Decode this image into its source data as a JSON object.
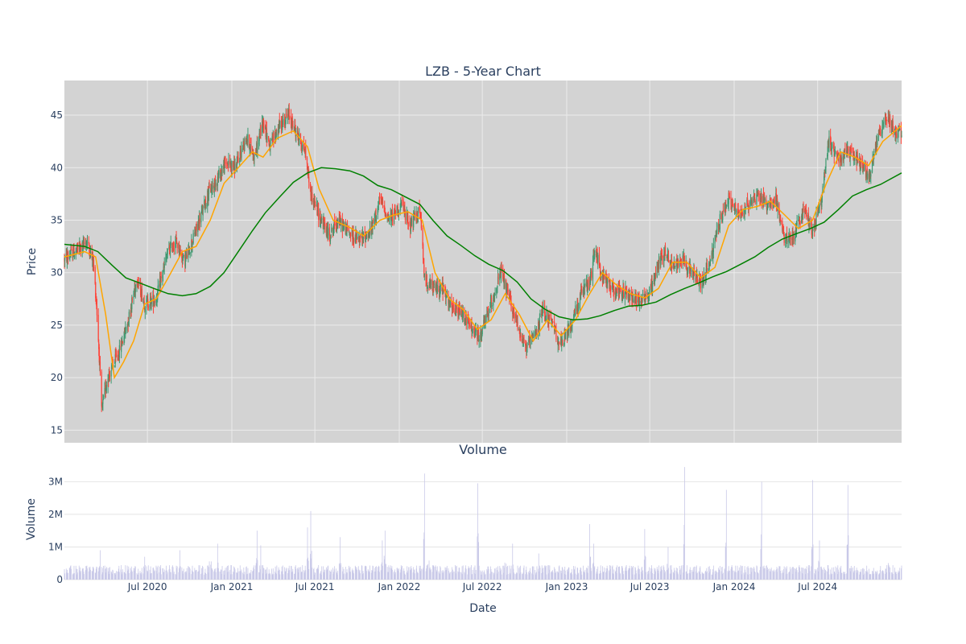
{
  "chart_data": [
    {
      "type": "candlestick",
      "title": "LZB - 5-Year Chart",
      "ylabel": "Price",
      "ylim": [
        13.8,
        48.3
      ],
      "y_ticks": [
        15,
        20,
        25,
        30,
        35,
        40,
        45
      ],
      "x_range": [
        "2020-01-02",
        "2024-12-31"
      ],
      "up_color": "#3d9970",
      "down_color": "#ff4136",
      "grid": true,
      "price_anchors": [
        [
          "2020-01-02",
          31.3
        ],
        [
          "2020-02-10",
          32.5
        ],
        [
          "2020-02-20",
          33.0
        ],
        [
          "2020-03-05",
          31.0
        ],
        [
          "2020-03-12",
          27.0
        ],
        [
          "2020-03-18",
          22.0
        ],
        [
          "2020-03-23",
          16.8
        ],
        [
          "2020-04-05",
          20.0
        ],
        [
          "2020-05-01",
          22.5
        ],
        [
          "2020-05-20",
          25.5
        ],
        [
          "2020-06-08",
          29.5
        ],
        [
          "2020-06-25",
          27.0
        ],
        [
          "2020-07-20",
          27.5
        ],
        [
          "2020-08-15",
          32.0
        ],
        [
          "2020-09-01",
          33.0
        ],
        [
          "2020-09-20",
          31.0
        ],
        [
          "2020-10-15",
          34.0
        ],
        [
          "2020-11-10",
          37.5
        ],
        [
          "2020-12-01",
          39.0
        ],
        [
          "2020-12-20",
          40.5
        ],
        [
          "2021-01-10",
          40.0
        ],
        [
          "2021-02-01",
          43.0
        ],
        [
          "2021-02-20",
          41.0
        ],
        [
          "2021-03-10",
          44.5
        ],
        [
          "2021-03-25",
          42.0
        ],
        [
          "2021-04-15",
          44.0
        ],
        [
          "2021-05-05",
          45.0
        ],
        [
          "2021-05-25",
          43.0
        ],
        [
          "2021-06-10",
          41.5
        ],
        [
          "2021-06-22",
          37.5
        ],
        [
          "2021-07-10",
          35.5
        ],
        [
          "2021-08-01",
          33.5
        ],
        [
          "2021-08-20",
          35.0
        ],
        [
          "2021-09-10",
          34.0
        ],
        [
          "2021-10-05",
          33.0
        ],
        [
          "2021-11-01",
          34.0
        ],
        [
          "2021-11-20",
          37.0
        ],
        [
          "2021-12-10",
          35.0
        ],
        [
          "2022-01-05",
          36.5
        ],
        [
          "2022-01-25",
          34.5
        ],
        [
          "2022-02-15",
          36.0
        ],
        [
          "2022-02-25",
          29.5
        ],
        [
          "2022-03-15",
          28.5
        ],
        [
          "2022-04-05",
          28.5
        ],
        [
          "2022-04-25",
          26.5
        ],
        [
          "2022-05-20",
          26.0
        ],
        [
          "2022-06-10",
          24.5
        ],
        [
          "2022-06-25",
          23.8
        ],
        [
          "2022-07-20",
          27.0
        ],
        [
          "2022-08-10",
          30.0
        ],
        [
          "2022-08-25",
          28.0
        ],
        [
          "2022-09-20",
          24.5
        ],
        [
          "2022-10-05",
          22.8
        ],
        [
          "2022-10-25",
          24.0
        ],
        [
          "2022-11-10",
          26.5
        ],
        [
          "2022-12-01",
          25.0
        ],
        [
          "2022-12-20",
          23.0
        ],
        [
          "2023-01-10",
          25.0
        ],
        [
          "2023-02-01",
          28.0
        ],
        [
          "2023-02-20",
          29.0
        ],
        [
          "2023-03-05",
          32.5
        ],
        [
          "2023-03-15",
          30.0
        ],
        [
          "2023-04-10",
          28.5
        ],
        [
          "2023-05-10",
          28.0
        ],
        [
          "2023-06-10",
          27.5
        ],
        [
          "2023-07-01",
          28.0
        ],
        [
          "2023-07-20",
          31.0
        ],
        [
          "2023-08-05",
          32.0
        ],
        [
          "2023-08-20",
          30.5
        ],
        [
          "2023-09-10",
          31.5
        ],
        [
          "2023-10-01",
          30.0
        ],
        [
          "2023-10-20",
          29.0
        ],
        [
          "2023-11-10",
          31.0
        ],
        [
          "2023-12-01",
          35.0
        ],
        [
          "2023-12-20",
          37.0
        ],
        [
          "2024-01-10",
          35.5
        ],
        [
          "2024-02-01",
          36.5
        ],
        [
          "2024-02-20",
          37.5
        ],
        [
          "2024-03-10",
          36.5
        ],
        [
          "2024-04-01",
          37.0
        ],
        [
          "2024-04-20",
          33.0
        ],
        [
          "2024-05-10",
          33.5
        ],
        [
          "2024-06-01",
          36.0
        ],
        [
          "2024-06-20",
          34.0
        ],
        [
          "2024-07-10",
          37.0
        ],
        [
          "2024-07-25",
          42.5
        ],
        [
          "2024-08-15",
          41.0
        ],
        [
          "2024-09-10",
          41.5
        ],
        [
          "2024-10-01",
          40.5
        ],
        [
          "2024-10-20",
          39.0
        ],
        [
          "2024-11-10",
          43.0
        ],
        [
          "2024-11-30",
          45.0
        ],
        [
          "2024-12-15",
          43.5
        ],
        [
          "2024-12-31",
          43.2
        ]
      ],
      "series": [
        {
          "kind": "moving-average",
          "color": "#ffa500",
          "points": [
            [
              "2020-01-02",
              31.5
            ],
            [
              "2020-02-15",
              32.0
            ],
            [
              "2020-03-10",
              31.5
            ],
            [
              "2020-04-01",
              26.0
            ],
            [
              "2020-04-20",
              20.0
            ],
            [
              "2020-05-10",
              21.5
            ],
            [
              "2020-06-01",
              23.5
            ],
            [
              "2020-06-25",
              27.0
            ],
            [
              "2020-07-20",
              27.5
            ],
            [
              "2020-08-15",
              29.5
            ],
            [
              "2020-09-15",
              32.0
            ],
            [
              "2020-10-15",
              32.5
            ],
            [
              "2020-11-15",
              35.0
            ],
            [
              "2020-12-15",
              38.5
            ],
            [
              "2021-01-15",
              40.0
            ],
            [
              "2021-02-15",
              41.5
            ],
            [
              "2021-03-10",
              41.0
            ],
            [
              "2021-04-10",
              42.8
            ],
            [
              "2021-05-15",
              43.5
            ],
            [
              "2021-06-15",
              42.0
            ],
            [
              "2021-07-10",
              38.0
            ],
            [
              "2021-08-10",
              35.0
            ],
            [
              "2021-09-15",
              34.3
            ],
            [
              "2021-10-15",
              33.5
            ],
            [
              "2021-11-20",
              35.0
            ],
            [
              "2021-12-20",
              35.5
            ],
            [
              "2022-01-20",
              35.8
            ],
            [
              "2022-02-20",
              35.0
            ],
            [
              "2022-03-20",
              30.0
            ],
            [
              "2022-04-20",
              27.5
            ],
            [
              "2022-05-20",
              26.5
            ],
            [
              "2022-06-20",
              24.6
            ],
            [
              "2022-07-20",
              25.5
            ],
            [
              "2022-08-20",
              28.0
            ],
            [
              "2022-09-20",
              26.0
            ],
            [
              "2022-10-20",
              23.5
            ],
            [
              "2022-11-20",
              25.5
            ],
            [
              "2022-12-20",
              24.0
            ],
            [
              "2023-01-20",
              25.5
            ],
            [
              "2023-02-20",
              28.0
            ],
            [
              "2023-03-20",
              30.0
            ],
            [
              "2023-04-20",
              28.8
            ],
            [
              "2023-05-20",
              28.0
            ],
            [
              "2023-06-20",
              27.6
            ],
            [
              "2023-07-20",
              28.5
            ],
            [
              "2023-08-20",
              31.0
            ],
            [
              "2023-09-20",
              31.0
            ],
            [
              "2023-10-20",
              29.5
            ],
            [
              "2023-11-20",
              30.5
            ],
            [
              "2023-12-20",
              34.5
            ],
            [
              "2024-01-20",
              36.0
            ],
            [
              "2024-02-20",
              36.3
            ],
            [
              "2024-03-20",
              36.8
            ],
            [
              "2024-04-20",
              35.5
            ],
            [
              "2024-05-20",
              34.2
            ],
            [
              "2024-06-20",
              35.0
            ],
            [
              "2024-07-20",
              38.5
            ],
            [
              "2024-08-20",
              41.5
            ],
            [
              "2024-09-20",
              41.0
            ],
            [
              "2024-10-20",
              40.2
            ],
            [
              "2024-11-20",
              42.5
            ],
            [
              "2024-12-31",
              44.0
            ]
          ]
        },
        {
          "kind": "moving-average",
          "color": "#008000",
          "points": [
            [
              "2020-01-02",
              32.7
            ],
            [
              "2020-02-15",
              32.5
            ],
            [
              "2020-03-15",
              32.0
            ],
            [
              "2020-04-15",
              30.7
            ],
            [
              "2020-05-15",
              29.5
            ],
            [
              "2020-06-15",
              29.0
            ],
            [
              "2020-07-15",
              28.5
            ],
            [
              "2020-08-15",
              28.0
            ],
            [
              "2020-09-15",
              27.8
            ],
            [
              "2020-10-15",
              28.0
            ],
            [
              "2020-11-15",
              28.7
            ],
            [
              "2020-12-15",
              30.0
            ],
            [
              "2021-01-15",
              32.0
            ],
            [
              "2021-02-15",
              34.0
            ],
            [
              "2021-03-15",
              35.7
            ],
            [
              "2021-04-15",
              37.2
            ],
            [
              "2021-05-15",
              38.6
            ],
            [
              "2021-06-15",
              39.5
            ],
            [
              "2021-07-15",
              40.0
            ],
            [
              "2021-08-15",
              39.9
            ],
            [
              "2021-09-15",
              39.7
            ],
            [
              "2021-10-15",
              39.2
            ],
            [
              "2021-11-15",
              38.3
            ],
            [
              "2021-12-15",
              37.9
            ],
            [
              "2022-01-15",
              37.2
            ],
            [
              "2022-02-15",
              36.5
            ],
            [
              "2022-03-15",
              35.0
            ],
            [
              "2022-04-15",
              33.5
            ],
            [
              "2022-05-15",
              32.6
            ],
            [
              "2022-06-15",
              31.6
            ],
            [
              "2022-07-15",
              30.8
            ],
            [
              "2022-08-15",
              30.2
            ],
            [
              "2022-09-15",
              29.1
            ],
            [
              "2022-10-15",
              27.5
            ],
            [
              "2022-11-15",
              26.5
            ],
            [
              "2022-12-15",
              25.8
            ],
            [
              "2023-01-15",
              25.5
            ],
            [
              "2023-02-15",
              25.6
            ],
            [
              "2023-03-15",
              25.9
            ],
            [
              "2023-04-15",
              26.4
            ],
            [
              "2023-05-15",
              26.8
            ],
            [
              "2023-06-15",
              26.9
            ],
            [
              "2023-07-15",
              27.2
            ],
            [
              "2023-08-15",
              27.9
            ],
            [
              "2023-09-15",
              28.5
            ],
            [
              "2023-10-15",
              29.0
            ],
            [
              "2023-11-15",
              29.6
            ],
            [
              "2023-12-15",
              30.1
            ],
            [
              "2024-01-15",
              30.8
            ],
            [
              "2024-02-15",
              31.5
            ],
            [
              "2024-03-15",
              32.4
            ],
            [
              "2024-04-15",
              33.2
            ],
            [
              "2024-05-15",
              33.7
            ],
            [
              "2024-06-15",
              34.2
            ],
            [
              "2024-07-15",
              34.8
            ],
            [
              "2024-08-15",
              36.0
            ],
            [
              "2024-09-15",
              37.3
            ],
            [
              "2024-10-15",
              37.9
            ],
            [
              "2024-11-15",
              38.4
            ],
            [
              "2024-12-31",
              39.5
            ]
          ]
        }
      ]
    },
    {
      "type": "bar",
      "title": "Volume",
      "xlabel": "Date",
      "ylabel": "Volume",
      "ylim": [
        0,
        3700000
      ],
      "y_ticks": [
        0,
        1000000,
        2000000,
        3000000
      ],
      "y_tick_labels": [
        "0",
        "1M",
        "2M",
        "3M"
      ],
      "x_ticks": [
        "2020-07-01",
        "2021-01-01",
        "2021-07-01",
        "2022-01-01",
        "2022-07-01",
        "2023-01-01",
        "2023-07-01",
        "2024-01-01",
        "2024-07-01"
      ],
      "x_tick_labels": [
        "Jul 2020",
        "Jan 2021",
        "Jul 2021",
        "Jan 2022",
        "Jul 2022",
        "Jan 2023",
        "Jul 2023",
        "Jan 2024",
        "Jul 2024"
      ],
      "bar_color": "#c9c9e8",
      "base_volume": 330000,
      "spikes": [
        [
          "2020-03-20",
          900000
        ],
        [
          "2020-04-05",
          800000
        ],
        [
          "2020-06-25",
          700000
        ],
        [
          "2020-09-10",
          900000
        ],
        [
          "2020-11-15",
          1400000
        ],
        [
          "2020-12-01",
          1100000
        ],
        [
          "2020-12-20",
          900000
        ],
        [
          "2021-02-25",
          1500000
        ],
        [
          "2021-03-05",
          1050000
        ],
        [
          "2021-06-15",
          1600000
        ],
        [
          "2021-06-22",
          2100000
        ],
        [
          "2021-08-25",
          1300000
        ],
        [
          "2021-11-25",
          1200000
        ],
        [
          "2021-12-01",
          1500000
        ],
        [
          "2022-02-25",
          3250000
        ],
        [
          "2022-03-05",
          1300000
        ],
        [
          "2022-06-21",
          2950000
        ],
        [
          "2022-08-20",
          1150000
        ],
        [
          "2022-09-05",
          1100000
        ],
        [
          "2022-11-01",
          800000
        ],
        [
          "2023-02-20",
          1700000
        ],
        [
          "2023-03-01",
          1100000
        ],
        [
          "2023-06-20",
          1550000
        ],
        [
          "2023-08-10",
          1000000
        ],
        [
          "2023-09-15",
          3450000
        ],
        [
          "2023-12-15",
          2750000
        ],
        [
          "2024-03-01",
          3000000
        ],
        [
          "2024-06-20",
          3050000
        ],
        [
          "2024-07-05",
          1200000
        ],
        [
          "2024-09-05",
          2900000
        ],
        [
          "2024-12-01",
          1050000
        ]
      ]
    }
  ]
}
